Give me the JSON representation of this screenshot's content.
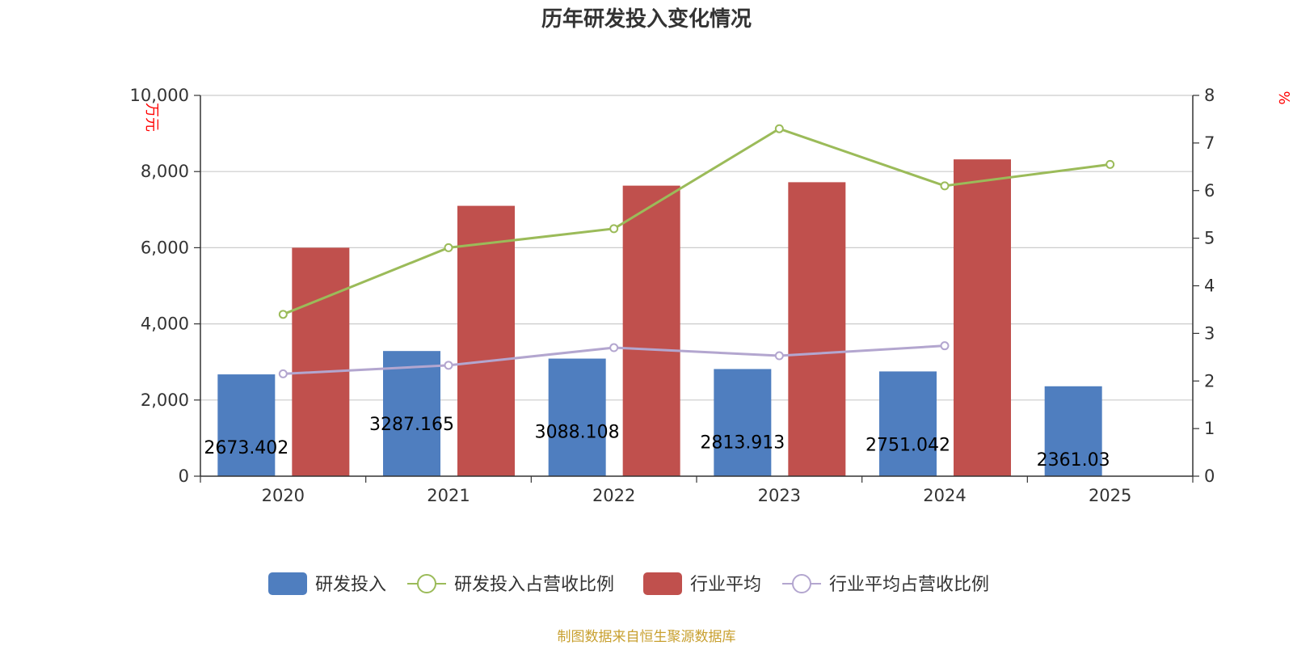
{
  "title": "历年研发投入变化情况",
  "source": "制图数据来自恒生聚源数据库",
  "colors": {
    "rd": "#4f7ebf",
    "industry": "#c0504d",
    "rd_ratio": "#9bbb59",
    "industry_ratio": "#b3a6cf"
  },
  "chart_data": {
    "type": "bar",
    "title": "历年研发投入变化情况",
    "categories": [
      "2020",
      "2021",
      "2022",
      "2023",
      "2024",
      "2025"
    ],
    "y_left": {
      "unit": "万元",
      "range": [
        0,
        10000
      ],
      "ticks": [
        "0",
        "2,000",
        "4,000",
        "6,000",
        "8,000",
        "10,000"
      ]
    },
    "y_right": {
      "unit": "%",
      "range": [
        0,
        8
      ],
      "ticks": [
        "0",
        "1",
        "2",
        "3",
        "4",
        "5",
        "6",
        "7",
        "8"
      ]
    },
    "grid": true,
    "legend_position": "bottom",
    "series": [
      {
        "name": "研发投入",
        "type": "bar",
        "axis": "left",
        "values": [
          2673.402,
          3287.165,
          3088.108,
          2813.913,
          2751.042,
          2361.03
        ],
        "labels": [
          "2673.402",
          "3287.165",
          "3088.108",
          "2813.913",
          "2751.042",
          "2361.03"
        ]
      },
      {
        "name": "研发投入占营收比例",
        "type": "line",
        "axis": "right",
        "values": [
          3.4,
          4.8,
          5.2,
          7.3,
          6.1,
          6.55
        ]
      },
      {
        "name": "行业平均",
        "type": "bar",
        "axis": "left",
        "values": [
          6000,
          7100,
          7630,
          7720,
          8320,
          null
        ]
      },
      {
        "name": "行业平均占营收比例",
        "type": "line",
        "axis": "right",
        "values": [
          2.15,
          2.33,
          2.7,
          2.53,
          2.74,
          null
        ]
      }
    ]
  }
}
